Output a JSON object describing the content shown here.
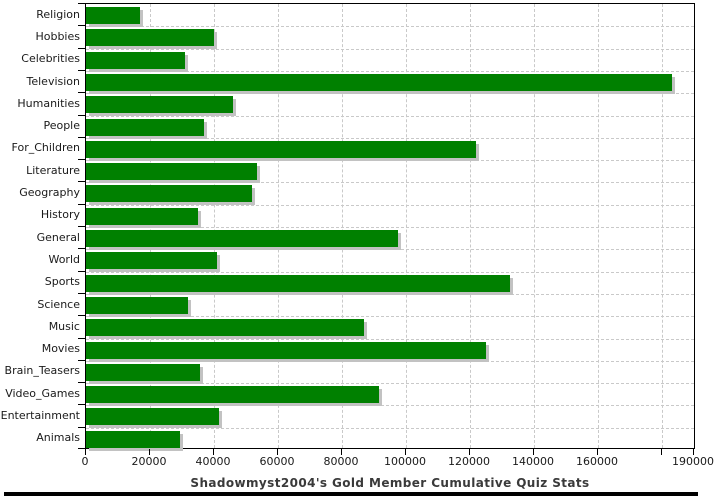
{
  "chart_data": {
    "type": "bar",
    "orientation": "horizontal",
    "title": "Shadowmyst2004's Gold Member Cumulative Quiz Stats",
    "categories": [
      "Religion",
      "Hobbies",
      "Celebrities",
      "Television",
      "Humanities",
      "People",
      "For_Children",
      "Literature",
      "Geography",
      "History",
      "General",
      "World",
      "Sports",
      "Science",
      "Music",
      "Movies",
      "Brain_Teasers",
      "Video_Games",
      "Entertainment",
      "Animals"
    ],
    "values": [
      17000,
      40000,
      31000,
      183000,
      46000,
      37000,
      122000,
      53500,
      52000,
      35000,
      97500,
      41000,
      132500,
      32000,
      87000,
      125000,
      35500,
      91500,
      41500,
      29500
    ],
    "xlabel": "",
    "ylabel": "",
    "xlim": [
      0,
      190000
    ],
    "x_ticks": [
      {
        "v": 0,
        "label": "0"
      },
      {
        "v": 20000,
        "label": "20000"
      },
      {
        "v": 40000,
        "label": "40000"
      },
      {
        "v": 60000,
        "label": "60000"
      },
      {
        "v": 80000,
        "label": "80000"
      },
      {
        "v": 100000,
        "label": "100000"
      },
      {
        "v": 120000,
        "label": "120000"
      },
      {
        "v": 140000,
        "label": "140000"
      },
      {
        "v": 160000,
        "label": "160000"
      },
      {
        "v": 180000,
        "label": ""
      },
      {
        "v": 190000,
        "label": "190000"
      }
    ],
    "grid": "dashed-both",
    "legend": "none",
    "colors": {
      "bar": "#008000",
      "bar_shadow": "#c2c2c2",
      "gridline": "#c9c9c9",
      "axis": "#000000",
      "title_text": "#3a3a3a",
      "tick_text": "#1a1a1a"
    }
  }
}
